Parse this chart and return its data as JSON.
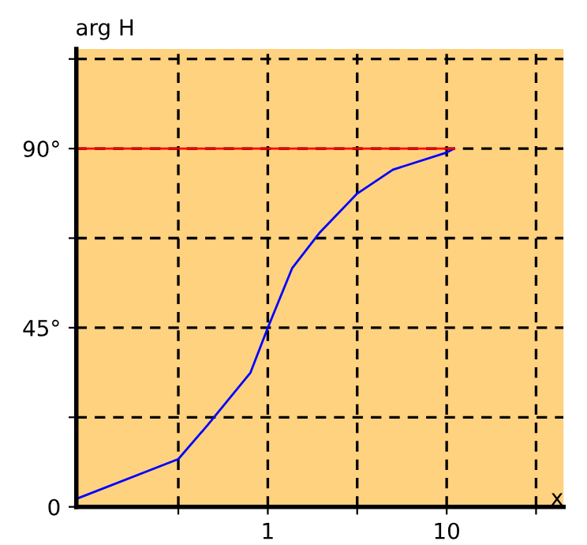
{
  "chart_data": {
    "type": "line",
    "ylabel": "arg H",
    "xlabel": "x",
    "log": "x",
    "xlim": [
      0.085,
      45
    ],
    "xticks": [
      {
        "value": 0.316,
        "label": null
      },
      1,
      {
        "value": 3.16,
        "label": null
      },
      10,
      {
        "value": 31.6,
        "label": null
      }
    ],
    "ylim": [
      0,
      115
    ],
    "yticks": [
      0,
      {
        "value": 22.5,
        "label": null
      },
      {
        "value": 45,
        "label": "45°"
      },
      {
        "value": 67.5,
        "label": null
      },
      {
        "value": 90,
        "label": "90°"
      },
      {
        "value": 112.5,
        "label": null
      }
    ],
    "grid": true,
    "line_style": "solid",
    "series": [
      {
        "color": "#0000ff",
        "x": [
          0.085,
          0.316,
          0.46,
          0.8,
          1,
          1.37,
          1.96,
          3.16,
          5,
          10,
          11
        ],
        "values": [
          2,
          12,
          20.5,
          33.7,
          45,
          60,
          69,
          78.7,
          84.7,
          89,
          90
        ]
      },
      {
        "color": "#ff0000",
        "x": [
          0.085,
          11
        ],
        "values": [
          90,
          90
        ]
      }
    ]
  }
}
